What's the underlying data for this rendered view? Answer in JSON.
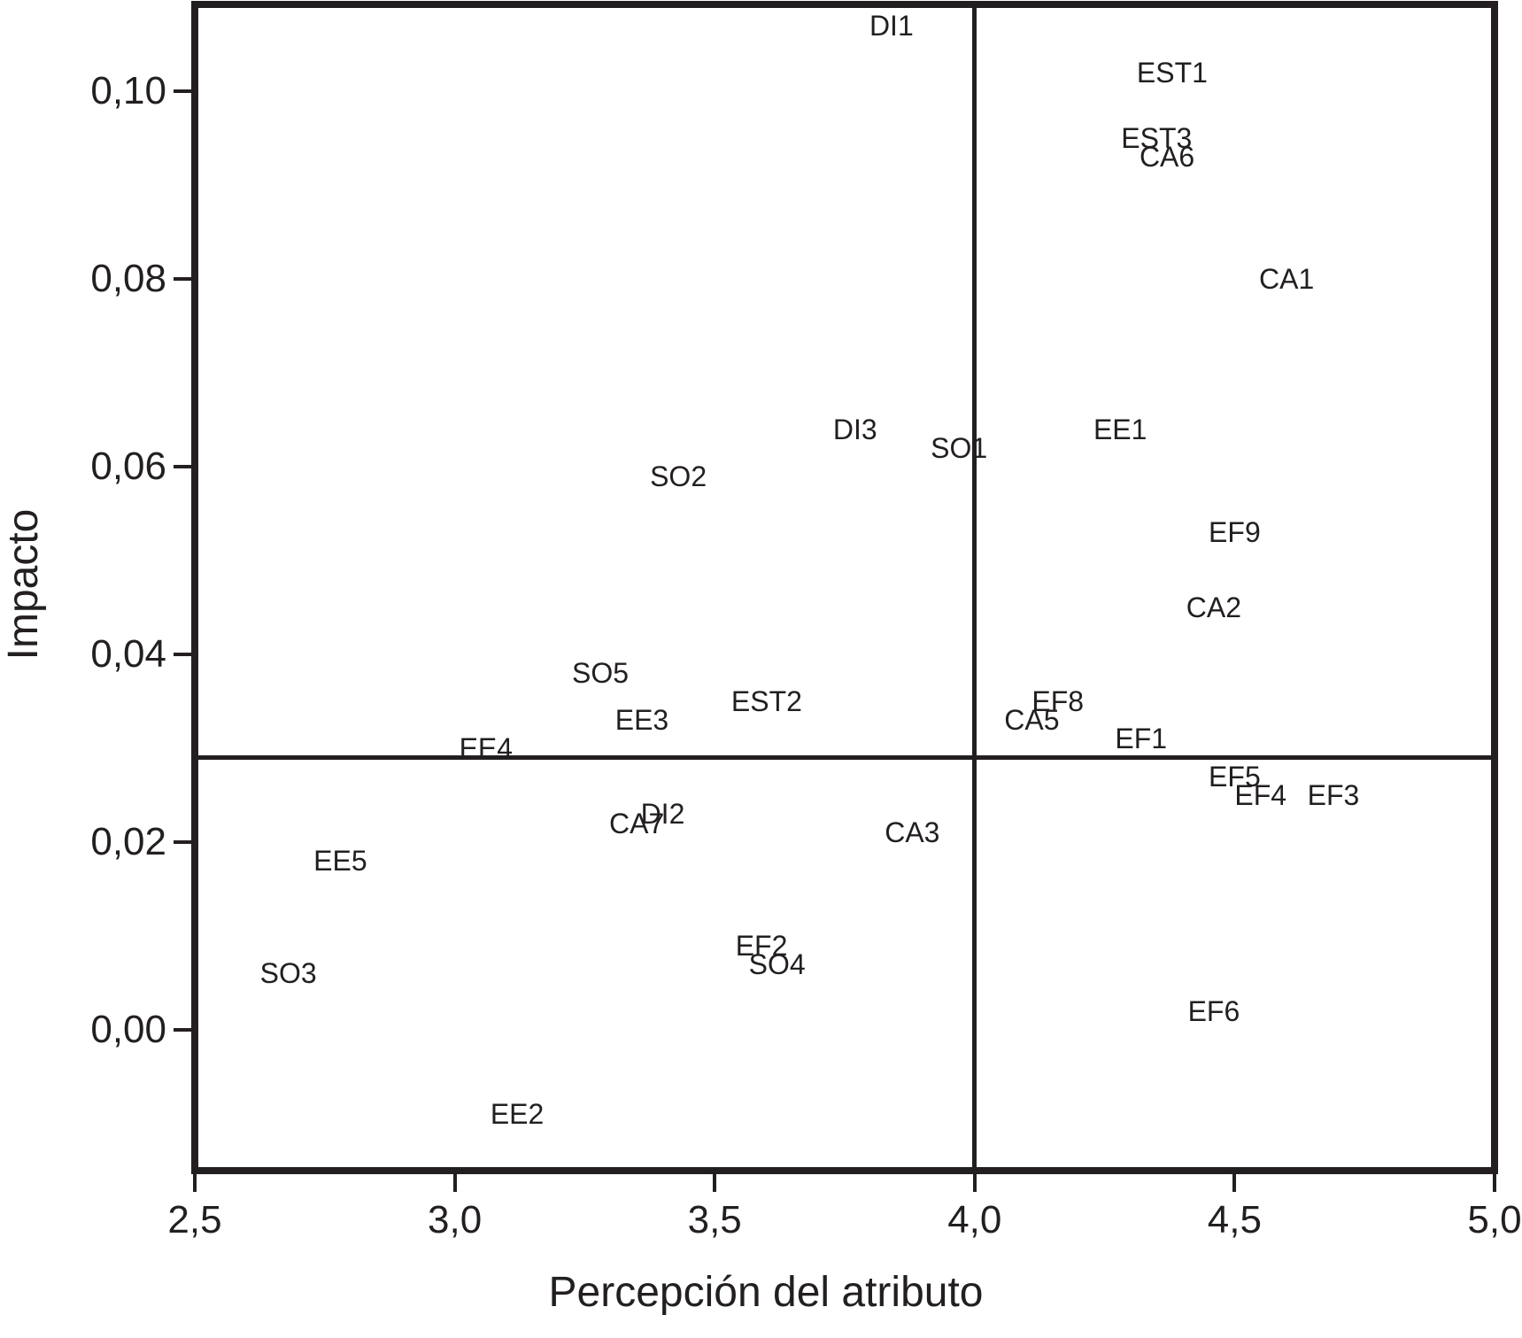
{
  "colors": {
    "ink": "#231f20",
    "background": "#ffffff"
  },
  "chart_data": {
    "type": "scatter",
    "title": "",
    "xlabel": "Percepción del atributo",
    "ylabel": "Impacto",
    "xlim": [
      2.5,
      5.0
    ],
    "ylim": [
      -0.0115,
      0.1095
    ],
    "grid": false,
    "legend": false,
    "marker_style": "text-label-only",
    "x_ticks": [
      {
        "value": 2.5,
        "label": "2,5"
      },
      {
        "value": 3.0,
        "label": "3,0"
      },
      {
        "value": 3.5,
        "label": "3,5"
      },
      {
        "value": 4.0,
        "label": "4,0"
      },
      {
        "value": 4.5,
        "label": "4,5"
      },
      {
        "value": 5.0,
        "label": "5,0"
      }
    ],
    "y_ticks": [
      {
        "value": 0.0,
        "label": "0,00"
      },
      {
        "value": 0.02,
        "label": "0,02"
      },
      {
        "value": 0.04,
        "label": "0,04"
      },
      {
        "value": 0.06,
        "label": "0,06"
      },
      {
        "value": 0.08,
        "label": "0,08"
      },
      {
        "value": 0.1,
        "label": "0,10"
      }
    ],
    "crosshair": {
      "x": 4.0,
      "y": 0.029
    },
    "points": [
      {
        "label": "DI1",
        "x": 3.84,
        "y": 0.107
      },
      {
        "label": "EST1",
        "x": 4.38,
        "y": 0.102
      },
      {
        "label": "EST3",
        "x": 4.35,
        "y": 0.095
      },
      {
        "label": "CA6",
        "x": 4.37,
        "y": 0.093
      },
      {
        "label": "CA1",
        "x": 4.6,
        "y": 0.08
      },
      {
        "label": "EE1",
        "x": 4.28,
        "y": 0.064
      },
      {
        "label": "DI3",
        "x": 3.77,
        "y": 0.064
      },
      {
        "label": "SO1",
        "x": 3.97,
        "y": 0.062
      },
      {
        "label": "SO2",
        "x": 3.43,
        "y": 0.059
      },
      {
        "label": "EF9",
        "x": 4.5,
        "y": 0.053
      },
      {
        "label": "CA2",
        "x": 4.46,
        "y": 0.045
      },
      {
        "label": "SO5",
        "x": 3.28,
        "y": 0.038
      },
      {
        "label": "EST2",
        "x": 3.6,
        "y": 0.035
      },
      {
        "label": "EF8",
        "x": 4.16,
        "y": 0.035
      },
      {
        "label": "EE3",
        "x": 3.36,
        "y": 0.033
      },
      {
        "label": "CA5",
        "x": 4.11,
        "y": 0.033
      },
      {
        "label": "EF1",
        "x": 4.32,
        "y": 0.031
      },
      {
        "label": "EE4",
        "x": 3.06,
        "y": 0.03
      },
      {
        "label": "EF5",
        "x": 4.5,
        "y": 0.027
      },
      {
        "label": "EF4",
        "x": 4.55,
        "y": 0.025
      },
      {
        "label": "EF3",
        "x": 4.69,
        "y": 0.025
      },
      {
        "label": "DI2",
        "x": 3.4,
        "y": 0.023
      },
      {
        "label": "CA7",
        "x": 3.35,
        "y": 0.022
      },
      {
        "label": "CA3",
        "x": 3.88,
        "y": 0.021
      },
      {
        "label": "EE5",
        "x": 2.78,
        "y": 0.018
      },
      {
        "label": "EF2",
        "x": 3.59,
        "y": 0.009
      },
      {
        "label": "SO4",
        "x": 3.62,
        "y": 0.007
      },
      {
        "label": "SO3",
        "x": 2.68,
        "y": 0.006
      },
      {
        "label": "EF6",
        "x": 4.46,
        "y": 0.002
      },
      {
        "label": "EE2",
        "x": 3.12,
        "y": -0.009
      }
    ]
  }
}
